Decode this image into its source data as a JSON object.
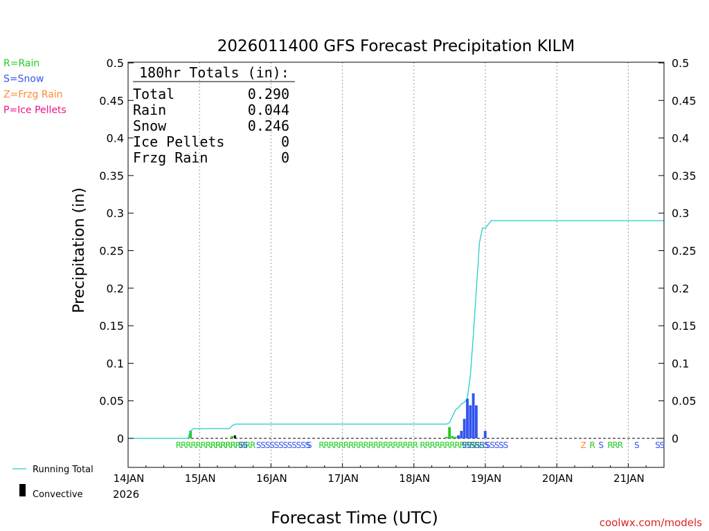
{
  "chart_data": {
    "type": "bar",
    "title": "2026011400 GFS Forecast Precipitation KILM",
    "ylabel": "Precipitation (in)",
    "xlabel": "Forecast Time (UTC)",
    "ylim": [
      -0.04,
      0.5
    ],
    "y_ticks": [
      0,
      0.05,
      0.1,
      0.15,
      0.2,
      0.25,
      0.3,
      0.35,
      0.4,
      0.45,
      0.5
    ],
    "y_tick_labels": [
      "0",
      "0.05",
      "0.1",
      "0.15",
      "0.2",
      "0.25",
      "0.3",
      "0.35",
      "0.4",
      "0.45",
      "0.5"
    ],
    "xlim_hours": [
      0,
      180
    ],
    "x_ticks": [
      {
        "hour": 0,
        "label": "14JAN"
      },
      {
        "hour": 24,
        "label": "15JAN"
      },
      {
        "hour": 48,
        "label": "16JAN"
      },
      {
        "hour": 72,
        "label": "17JAN"
      },
      {
        "hour": 96,
        "label": "18JAN"
      },
      {
        "hour": 120,
        "label": "19JAN"
      },
      {
        "hour": 144,
        "label": "20JAN"
      },
      {
        "hour": 168,
        "label": "21JAN"
      }
    ],
    "year_label": "2026",
    "type_legend": [
      {
        "text": "R=Rain",
        "color": "#22cc22"
      },
      {
        "text": "S=Snow",
        "color": "#3355ee"
      },
      {
        "text": "Z=Frzg Rain",
        "color": "#ff8833"
      },
      {
        "text": "P=Ice Pellets",
        "color": "#ee1188"
      }
    ],
    "totals_box": {
      "title": "180hr Totals (in):",
      "rows": [
        {
          "label": "Total",
          "value": "0.290"
        },
        {
          "label": "Rain",
          "value": "0.044"
        },
        {
          "label": "Snow",
          "value": "0.246"
        },
        {
          "label": "Ice Pellets",
          "value": "0"
        },
        {
          "label": "Frzg Rain",
          "value": "0"
        }
      ]
    },
    "series": [
      {
        "name": "Running Total",
        "color": "#22cccc",
        "hours": [
          0,
          20,
          21,
          22,
          34,
          35,
          36,
          107,
          108,
          109,
          110,
          111,
          112,
          113,
          114,
          114.5,
          115,
          116,
          117,
          117.5,
          118,
          119,
          119.5,
          120,
          121,
          122,
          180
        ],
        "values": [
          0,
          0,
          0.01,
          0.013,
          0.013,
          0.017,
          0.019,
          0.019,
          0.021,
          0.03,
          0.038,
          0.041,
          0.046,
          0.048,
          0.055,
          0.07,
          0.085,
          0.14,
          0.2,
          0.23,
          0.26,
          0.28,
          0.28,
          0.28,
          0.285,
          0.29,
          0.29
        ]
      },
      {
        "name": "Convective",
        "color": "#000000",
        "bars": [
          {
            "hour": 36,
            "value": 0.004
          }
        ]
      }
    ],
    "precip_bars": [
      {
        "hour": 21,
        "value": 0.01,
        "color": "#22cc22"
      },
      {
        "hour": 35,
        "value": 0.003,
        "color": "#22cc22"
      },
      {
        "hour": 107,
        "value": 0.002,
        "color": "#22cc22"
      },
      {
        "hour": 108,
        "value": 0.015,
        "color": "#22cc22"
      },
      {
        "hour": 109,
        "value": 0.003,
        "color": "#22cc22"
      },
      {
        "hour": 110,
        "value": 0.002,
        "color": "#22cc22"
      },
      {
        "hour": 111,
        "value": 0.004,
        "color": "#3355ee"
      },
      {
        "hour": 112,
        "value": 0.01,
        "color": "#3355ee"
      },
      {
        "hour": 113,
        "value": 0.026,
        "color": "#3355ee"
      },
      {
        "hour": 114,
        "value": 0.053,
        "color": "#3355ee"
      },
      {
        "hour": 115,
        "value": 0.044,
        "color": "#3355ee"
      },
      {
        "hour": 116,
        "value": 0.06,
        "color": "#3355ee"
      },
      {
        "hour": 117,
        "value": 0.044,
        "color": "#3355ee"
      },
      {
        "hour": 120,
        "value": 0.01,
        "color": "#3355ee"
      }
    ],
    "type_markers": [
      {
        "hour": 16,
        "text": "RRRRRRRRRRRRR",
        "color": "#22cc22"
      },
      {
        "hour": 26,
        "text": "RRRRRRRRRR",
        "color": "#22cc22"
      },
      {
        "hour": 37,
        "text": "SS",
        "color": "#3355ee"
      },
      {
        "hour": 43,
        "text": "SSSSSSSSSSSS",
        "color": "#3355ee"
      },
      {
        "hour": 60,
        "text": "S",
        "color": "#3355ee"
      },
      {
        "hour": 64,
        "text": "RRRRRRRRRRRRRRRRRRRR",
        "color": "#22cc22"
      },
      {
        "hour": 98,
        "text": "RRRRRRRRRRRRR",
        "color": "#22cc22"
      },
      {
        "hour": 112,
        "text": "SSSSSS",
        "color": "#3355ee"
      },
      {
        "hour": 120,
        "text": "SSSSS",
        "color": "#3355ee"
      },
      {
        "hour": 152,
        "text": "Z",
        "color": "#ff8833"
      },
      {
        "hour": 155,
        "text": "R",
        "color": "#22cc22"
      },
      {
        "hour": 158,
        "text": "S",
        "color": "#3355ee"
      },
      {
        "hour": 161,
        "text": "RRR",
        "color": "#22cc22"
      },
      {
        "hour": 170,
        "text": "S",
        "color": "#3355ee"
      },
      {
        "hour": 177,
        "text": "SS",
        "color": "#3355ee"
      }
    ],
    "bottom_legend": [
      {
        "text": "Running Total",
        "color": "#22cccc",
        "kind": "line"
      },
      {
        "text": "Convective",
        "color": "#000000",
        "kind": "bar"
      }
    ],
    "watermark": "coolwx.com/models"
  }
}
